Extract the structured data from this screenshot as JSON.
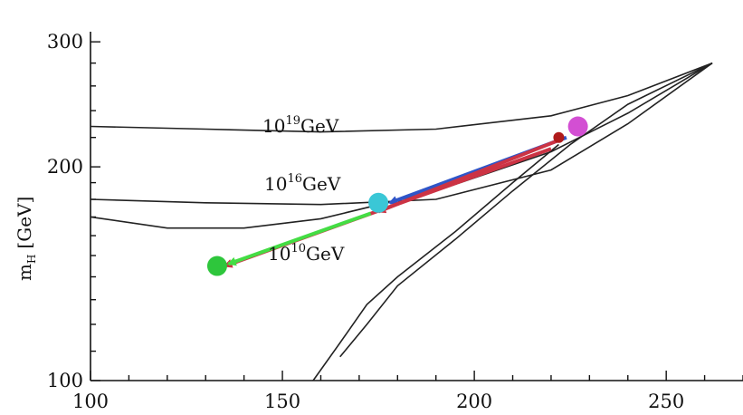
{
  "chart_data": {
    "type": "line",
    "title": "",
    "ylabel": "m",
    "ylabel_subscript": "H",
    "ylabel_unit": "[GeV]",
    "xlim": [
      100,
      270
    ],
    "ylim": [
      100,
      310
    ],
    "y_scale": "log",
    "grid": false,
    "x_ticks": [
      100,
      150,
      200,
      250
    ],
    "y_ticks": [
      100,
      200,
      300
    ],
    "x_tick_labels": [
      "100",
      "150",
      "200",
      "250"
    ],
    "y_tick_labels": [
      "100",
      "200",
      "300"
    ],
    "band_labels": [
      {
        "base": "10",
        "exp": "19",
        "unit": "GeV"
      },
      {
        "base": "10",
        "exp": "16",
        "unit": "GeV"
      },
      {
        "base": "10",
        "exp": "10",
        "unit": "GeV"
      }
    ],
    "series": [
      {
        "color": "#222222",
        "x": [
          100,
          130,
          160,
          190,
          220,
          240,
          262
        ],
        "y": [
          228,
          226,
          224,
          226,
          236,
          252,
          280
        ]
      },
      {
        "color": "#222222",
        "x": [
          100,
          130,
          160,
          190,
          220,
          240,
          262
        ],
        "y": [
          180,
          178,
          177,
          180,
          198,
          230,
          280
        ]
      },
      {
        "color": "#222222",
        "x": [
          100,
          120,
          140,
          160,
          190,
          220,
          240,
          262
        ],
        "y": [
          170,
          164,
          164,
          169,
          185,
          210,
          238,
          280
        ]
      },
      {
        "color": "#222222",
        "x": [
          158,
          165,
          172,
          180,
          195,
          210,
          222
        ],
        "y": [
          100,
          113,
          128,
          140,
          162,
          190,
          215
        ]
      },
      {
        "color": "#222222",
        "x": [
          165,
          172,
          180,
          195,
          210,
          225,
          240,
          262
        ],
        "y": [
          108,
          120,
          136,
          158,
          185,
          215,
          245,
          280
        ]
      }
    ],
    "arrows": [
      {
        "color": "#2f55c8",
        "from": [
          224,
          220
        ],
        "to": [
          178,
          178
        ]
      },
      {
        "color": "#cc3344",
        "from": [
          222,
          218
        ],
        "to": [
          175,
          173
        ]
      },
      {
        "color": "#cc3344",
        "from": [
          220,
          212
        ],
        "to": [
          135,
          145
        ]
      },
      {
        "color": "#44dd44",
        "from": [
          173,
          172
        ],
        "to": [
          136,
          146
        ]
      }
    ],
    "points": [
      {
        "color": "#d34fd3",
        "x": 227,
        "y": 228
      },
      {
        "color": "#3ac7d6",
        "x": 175,
        "y": 178
      },
      {
        "color": "#2ec63c",
        "x": 133,
        "y": 145
      },
      {
        "color": "#b01b1b",
        "x": 222,
        "y": 220
      }
    ]
  }
}
